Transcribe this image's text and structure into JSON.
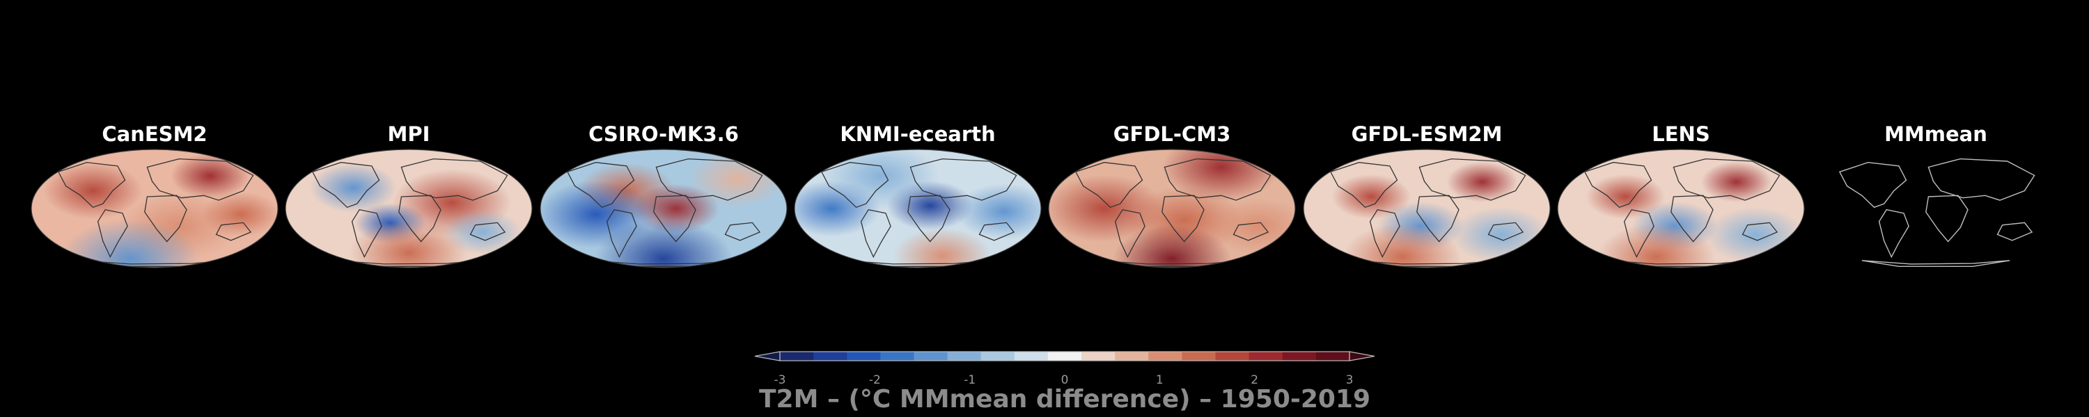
{
  "panels": [
    {
      "title": "CanESM2",
      "style": "warm"
    },
    {
      "title": "MPI",
      "style": "mixed-warm"
    },
    {
      "title": "CSIRO-MK3.6",
      "style": "mixed-cool"
    },
    {
      "title": "KNMI-ecearth",
      "style": "cool"
    },
    {
      "title": "GFDL-CM3",
      "style": "warm-strong"
    },
    {
      "title": "GFDL-ESM2M",
      "style": "mixed"
    },
    {
      "title": "LENS",
      "style": "mixed"
    },
    {
      "title": "MMmean",
      "style": "outline-only"
    }
  ],
  "colorbar": {
    "title": "T2M – (°C MMmean difference) – 1950-2019",
    "tick_labels": [
      "-3",
      "-2",
      "-1",
      "0",
      "1",
      "2",
      "3"
    ],
    "min": -3,
    "max": 3,
    "extend": "both",
    "colors": [
      "#1a2a6c",
      "#1f3f99",
      "#2356b7",
      "#3a74c4",
      "#5d93cf",
      "#84b0d8",
      "#a9c9e0",
      "#cfdfe9",
      "#f2f2f2",
      "#ecd3c6",
      "#e3b39c",
      "#d98e72",
      "#ca6a4f",
      "#b5473a",
      "#9c2a2e",
      "#7c1824",
      "#5e0f1b"
    ]
  },
  "colors": {
    "background": "#000000",
    "title_text": "#ffffff",
    "colorbar_text": "#8c8c8c"
  }
}
